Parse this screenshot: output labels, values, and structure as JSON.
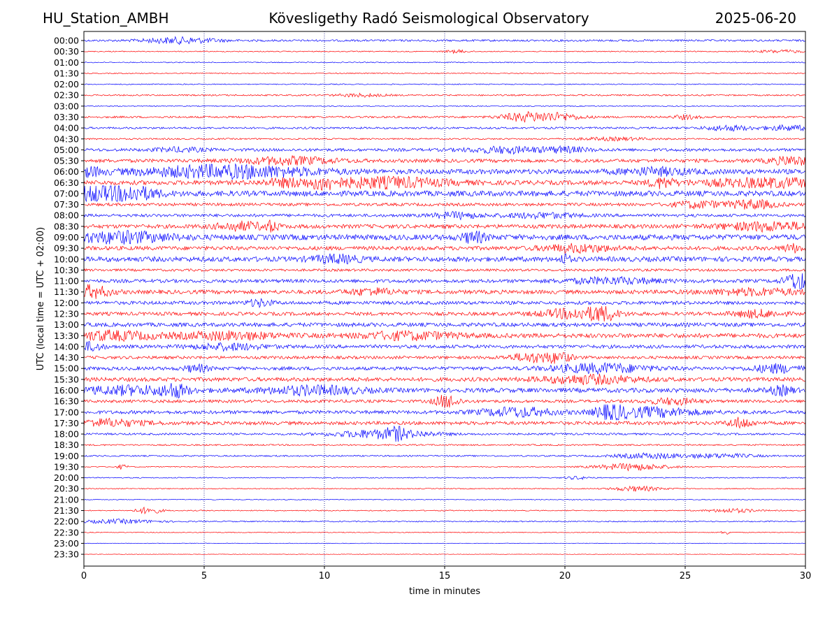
{
  "header": {
    "station": "HU_Station_AMBH",
    "observatory": "Kövesligethy Radó Seismological Observatory",
    "date": "2025-06-20"
  },
  "colors": {
    "blue": "#0000ff",
    "red": "#ff0000"
  },
  "chart_data": {
    "type": "line",
    "title": "Kövesligethy Radó Seismological Observatory",
    "xlabel": "time in minutes",
    "ylabel": "UTC (local time = UTC + 02:00)",
    "xlim": [
      0,
      30
    ],
    "x_ticks": [
      0,
      5,
      10,
      15,
      20,
      25,
      30
    ],
    "grid_x": true,
    "trace_colors": [
      "blue",
      "red"
    ],
    "series": [
      {
        "name": "00:00",
        "color": "blue",
        "amplitude": 0.2,
        "events": [
          [
            4.0,
            1.5,
            0.6
          ]
        ]
      },
      {
        "name": "00:30",
        "color": "red",
        "amplitude": 0.1,
        "events": [
          [
            15.5,
            0.5,
            0.3
          ],
          [
            29.0,
            1.0,
            0.3
          ]
        ]
      },
      {
        "name": "01:00",
        "color": "blue",
        "amplitude": 0.1,
        "events": []
      },
      {
        "name": "01:30",
        "color": "red",
        "amplitude": 0.1,
        "events": []
      },
      {
        "name": "02:00",
        "color": "blue",
        "amplitude": 0.1,
        "events": []
      },
      {
        "name": "02:30",
        "color": "red",
        "amplitude": 0.15,
        "events": [
          [
            11.5,
            1.0,
            0.3
          ]
        ]
      },
      {
        "name": "03:00",
        "color": "blue",
        "amplitude": 0.1,
        "events": []
      },
      {
        "name": "03:30",
        "color": "red",
        "amplitude": 0.2,
        "events": [
          [
            18.3,
            1.0,
            0.8
          ],
          [
            19.7,
            1.0,
            0.7
          ],
          [
            25.0,
            0.5,
            0.4
          ]
        ]
      },
      {
        "name": "04:00",
        "color": "blue",
        "amplitude": 0.2,
        "events": [
          [
            26.8,
            1.0,
            0.5
          ],
          [
            29.3,
            1.0,
            0.5
          ]
        ]
      },
      {
        "name": "04:30",
        "color": "red",
        "amplitude": 0.15,
        "events": [
          [
            22.0,
            1.5,
            0.3
          ]
        ]
      },
      {
        "name": "05:00",
        "color": "blue",
        "amplitude": 0.3,
        "events": [
          [
            4.0,
            1.0,
            0.4
          ],
          [
            17.5,
            1.5,
            0.6
          ],
          [
            20.0,
            1.0,
            0.5
          ]
        ]
      },
      {
        "name": "05:30",
        "color": "red",
        "amplitude": 0.35,
        "events": [
          [
            8.5,
            2.0,
            0.7
          ],
          [
            29.5,
            1.0,
            0.8
          ]
        ]
      },
      {
        "name": "06:00",
        "color": "blue",
        "amplitude": 0.5,
        "events": [
          [
            0.2,
            0.5,
            0.8
          ],
          [
            6.0,
            3.5,
            1.2
          ],
          [
            23.8,
            1.5,
            0.6
          ]
        ]
      },
      {
        "name": "06:30",
        "color": "red",
        "amplitude": 0.45,
        "events": [
          [
            8.5,
            1.0,
            0.7
          ],
          [
            10.0,
            0.5,
            1.0
          ],
          [
            12.5,
            2.5,
            1.0
          ],
          [
            24.0,
            0.5,
            0.9
          ],
          [
            28.5,
            3.0,
            0.8
          ]
        ]
      },
      {
        "name": "07:00",
        "color": "blue",
        "amplitude": 0.55,
        "events": [
          [
            0.6,
            1.5,
            1.6
          ],
          [
            2.2,
            1.0,
            0.8
          ]
        ]
      },
      {
        "name": "07:30",
        "color": "red",
        "amplitude": 0.3,
        "events": [
          [
            25.5,
            1.0,
            0.7
          ],
          [
            27.8,
            1.0,
            0.9
          ]
        ]
      },
      {
        "name": "08:00",
        "color": "blue",
        "amplitude": 0.3,
        "events": [
          [
            15.5,
            1.0,
            0.6
          ],
          [
            19.0,
            1.5,
            0.5
          ]
        ]
      },
      {
        "name": "08:30",
        "color": "red",
        "amplitude": 0.4,
        "events": [
          [
            6.5,
            1.0,
            0.8
          ],
          [
            7.8,
            0.3,
            0.9
          ],
          [
            28.5,
            2.0,
            0.8
          ]
        ]
      },
      {
        "name": "09:00",
        "color": "blue",
        "amplitude": 0.55,
        "events": [
          [
            1.5,
            2.0,
            1.0
          ],
          [
            16.2,
            0.5,
            1.0
          ]
        ]
      },
      {
        "name": "09:30",
        "color": "red",
        "amplitude": 0.4,
        "events": [
          [
            20.5,
            1.5,
            0.7
          ],
          [
            29.5,
            0.5,
            0.7
          ]
        ]
      },
      {
        "name": "10:00",
        "color": "blue",
        "amplitude": 0.5,
        "events": [
          [
            10.5,
            1.0,
            0.7
          ],
          [
            20.0,
            0.2,
            0.9
          ]
        ]
      },
      {
        "name": "10:30",
        "color": "red",
        "amplitude": 0.25,
        "events": []
      },
      {
        "name": "11:00",
        "color": "blue",
        "amplitude": 0.35,
        "events": [
          [
            22.0,
            2.0,
            0.6
          ],
          [
            29.8,
            0.6,
            2.0
          ]
        ]
      },
      {
        "name": "11:30",
        "color": "red",
        "amplitude": 0.4,
        "events": [
          [
            0.3,
            0.8,
            1.2
          ],
          [
            12.0,
            1.0,
            0.6
          ],
          [
            28.0,
            2.0,
            0.6
          ]
        ]
      },
      {
        "name": "12:00",
        "color": "blue",
        "amplitude": 0.35,
        "events": [
          [
            7.3,
            0.5,
            0.7
          ]
        ]
      },
      {
        "name": "12:30",
        "color": "red",
        "amplitude": 0.35,
        "events": [
          [
            20.5,
            1.5,
            1.0
          ],
          [
            21.6,
            0.5,
            1.1
          ],
          [
            28.0,
            1.0,
            0.7
          ]
        ]
      },
      {
        "name": "13:00",
        "color": "blue",
        "amplitude": 0.4,
        "events": []
      },
      {
        "name": "13:30",
        "color": "red",
        "amplitude": 0.45,
        "events": [
          [
            1.0,
            2.0,
            0.8
          ],
          [
            6.0,
            2.0,
            0.7
          ],
          [
            13.5,
            2.0,
            0.7
          ]
        ]
      },
      {
        "name": "14:00",
        "color": "blue",
        "amplitude": 0.35,
        "events": [
          [
            0.3,
            0.5,
            0.8
          ],
          [
            6.0,
            1.5,
            0.6
          ]
        ]
      },
      {
        "name": "14:30",
        "color": "red",
        "amplitude": 0.3,
        "events": [
          [
            18.7,
            1.0,
            0.9
          ],
          [
            19.8,
            0.5,
            0.8
          ]
        ]
      },
      {
        "name": "15:00",
        "color": "blue",
        "amplitude": 0.35,
        "events": [
          [
            4.7,
            0.5,
            0.7
          ],
          [
            21.5,
            2.0,
            0.9
          ],
          [
            28.8,
            1.0,
            0.8
          ]
        ]
      },
      {
        "name": "15:30",
        "color": "red",
        "amplitude": 0.4,
        "events": [
          [
            21.0,
            2.0,
            0.8
          ]
        ]
      },
      {
        "name": "16:00",
        "color": "blue",
        "amplitude": 0.45,
        "events": [
          [
            2.0,
            2.0,
            0.8
          ],
          [
            3.8,
            0.5,
            1.1
          ],
          [
            9.5,
            2.0,
            0.8
          ],
          [
            29.0,
            0.5,
            0.8
          ]
        ]
      },
      {
        "name": "16:30",
        "color": "red",
        "amplitude": 0.3,
        "events": [
          [
            15.1,
            0.5,
            1.3
          ],
          [
            24.5,
            1.0,
            0.6
          ]
        ]
      },
      {
        "name": "17:00",
        "color": "blue",
        "amplitude": 0.35,
        "events": [
          [
            18.0,
            1.5,
            0.9
          ],
          [
            21.9,
            0.5,
            1.8
          ],
          [
            23.5,
            2.0,
            0.9
          ]
        ]
      },
      {
        "name": "17:30",
        "color": "red",
        "amplitude": 0.35,
        "events": [
          [
            1.0,
            1.5,
            0.7
          ],
          [
            27.3,
            0.5,
            1.0
          ]
        ]
      },
      {
        "name": "18:00",
        "color": "blue",
        "amplitude": 0.2,
        "events": [
          [
            12.5,
            2.0,
            0.9
          ],
          [
            13.0,
            0.3,
            1.2
          ]
        ]
      },
      {
        "name": "18:30",
        "color": "red",
        "amplitude": 0.15,
        "events": []
      },
      {
        "name": "19:00",
        "color": "blue",
        "amplitude": 0.15,
        "events": [
          [
            23.5,
            1.5,
            0.5
          ],
          [
            26.5,
            1.5,
            0.4
          ]
        ]
      },
      {
        "name": "19:30",
        "color": "red",
        "amplitude": 0.1,
        "events": [
          [
            1.6,
            0.2,
            0.5
          ],
          [
            22.8,
            1.5,
            0.7
          ]
        ]
      },
      {
        "name": "20:00",
        "color": "blue",
        "amplitude": 0.1,
        "events": [
          [
            20.5,
            0.5,
            0.3
          ]
        ]
      },
      {
        "name": "20:30",
        "color": "red",
        "amplitude": 0.1,
        "events": [
          [
            23.0,
            1.0,
            0.5
          ]
        ]
      },
      {
        "name": "21:00",
        "color": "blue",
        "amplitude": 0.08,
        "events": []
      },
      {
        "name": "21:30",
        "color": "red",
        "amplitude": 0.1,
        "events": [
          [
            2.7,
            0.5,
            0.7
          ],
          [
            27.0,
            1.0,
            0.4
          ]
        ]
      },
      {
        "name": "22:00",
        "color": "blue",
        "amplitude": 0.12,
        "events": [
          [
            1.5,
            1.5,
            0.4
          ]
        ]
      },
      {
        "name": "22:30",
        "color": "red",
        "amplitude": 0.08,
        "events": [
          [
            26.7,
            0.2,
            0.4
          ]
        ]
      },
      {
        "name": "23:00",
        "color": "blue",
        "amplitude": 0.06,
        "events": []
      },
      {
        "name": "23:30",
        "color": "red",
        "amplitude": 0.05,
        "events": []
      }
    ]
  }
}
